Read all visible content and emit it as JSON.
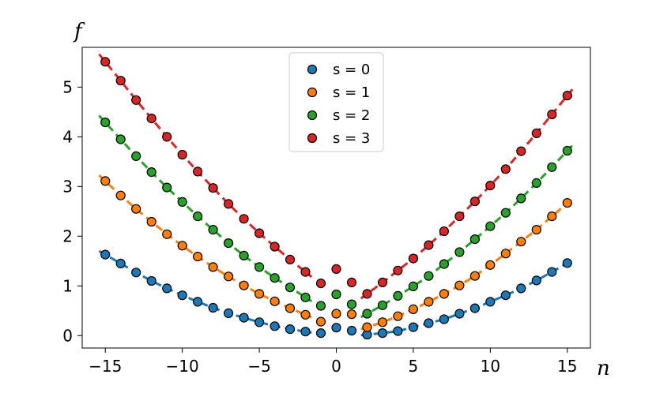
{
  "chart_data": {
    "type": "scatter",
    "xlabel": "n",
    "ylabel": "f",
    "xlim": [
      -16.5,
      16.5
    ],
    "ylim": [
      -0.25,
      5.8
    ],
    "xticks": [
      -15,
      -10,
      -5,
      0,
      5,
      10,
      15
    ],
    "xtick_labels": [
      "−15",
      "−10",
      "−5",
      "0",
      "5",
      "10",
      "15"
    ],
    "yticks": [
      0,
      1,
      2,
      3,
      4,
      5
    ],
    "ytick_labels": [
      "0",
      "1",
      "2",
      "3",
      "4",
      "5"
    ],
    "legend_position": "top-center",
    "x": [
      -15,
      -14,
      -13,
      -12,
      -11,
      -10,
      -9,
      -8,
      -7,
      -6,
      -5,
      -4,
      -3,
      -2,
      -1,
      0,
      1,
      2,
      3,
      4,
      5,
      6,
      7,
      8,
      9,
      10,
      11,
      12,
      13,
      14,
      15
    ],
    "series": [
      {
        "name": "s = 0",
        "color": "#1f77b4",
        "values": [
          1.63,
          1.45,
          1.27,
          1.1,
          0.95,
          0.81,
          0.68,
          0.56,
          0.45,
          0.36,
          0.27,
          0.19,
          0.13,
          0.08,
          0.05,
          0.16,
          0.1,
          0.02,
          0.05,
          0.09,
          0.17,
          0.25,
          0.33,
          0.44,
          0.55,
          0.68,
          0.81,
          0.95,
          1.11,
          1.28,
          1.46
        ],
        "fit_range": [
          [
            -15,
            -2
          ],
          [
            2,
            15
          ]
        ]
      },
      {
        "name": "s = 1",
        "color": "#ff7f0e",
        "values": [
          3.11,
          2.82,
          2.55,
          2.29,
          2.04,
          1.81,
          1.59,
          1.38,
          1.19,
          1.01,
          0.84,
          0.69,
          0.55,
          0.42,
          0.28,
          0.44,
          0.43,
          0.17,
          0.27,
          0.39,
          0.53,
          0.68,
          0.84,
          1.01,
          1.2,
          1.42,
          1.65,
          1.89,
          2.13,
          2.4,
          2.67
        ],
        "fit_range": [
          [
            -15,
            -2
          ],
          [
            2,
            15
          ]
        ]
      },
      {
        "name": "s = 2",
        "color": "#2ca02c",
        "values": [
          4.29,
          3.95,
          3.61,
          3.29,
          2.98,
          2.69,
          2.4,
          2.13,
          1.86,
          1.61,
          1.38,
          1.16,
          0.97,
          0.77,
          0.6,
          0.83,
          0.63,
          0.44,
          0.61,
          0.8,
          0.99,
          1.2,
          1.44,
          1.68,
          1.94,
          2.2,
          2.47,
          2.76,
          3.07,
          3.39,
          3.72
        ],
        "fit_range": [
          [
            -15,
            -2
          ],
          [
            2,
            15
          ]
        ]
      },
      {
        "name": "s = 3",
        "color": "#d62728",
        "values": [
          5.51,
          5.13,
          4.74,
          4.37,
          4.0,
          3.64,
          3.3,
          2.97,
          2.65,
          2.35,
          2.06,
          1.79,
          1.53,
          1.28,
          1.05,
          1.34,
          1.07,
          0.84,
          1.07,
          1.31,
          1.55,
          1.82,
          2.1,
          2.4,
          2.7,
          3.02,
          3.35,
          3.71,
          4.07,
          4.45,
          4.83
        ],
        "fit_range": [
          [
            -15,
            -2
          ],
          [
            2,
            15
          ]
        ]
      }
    ]
  }
}
